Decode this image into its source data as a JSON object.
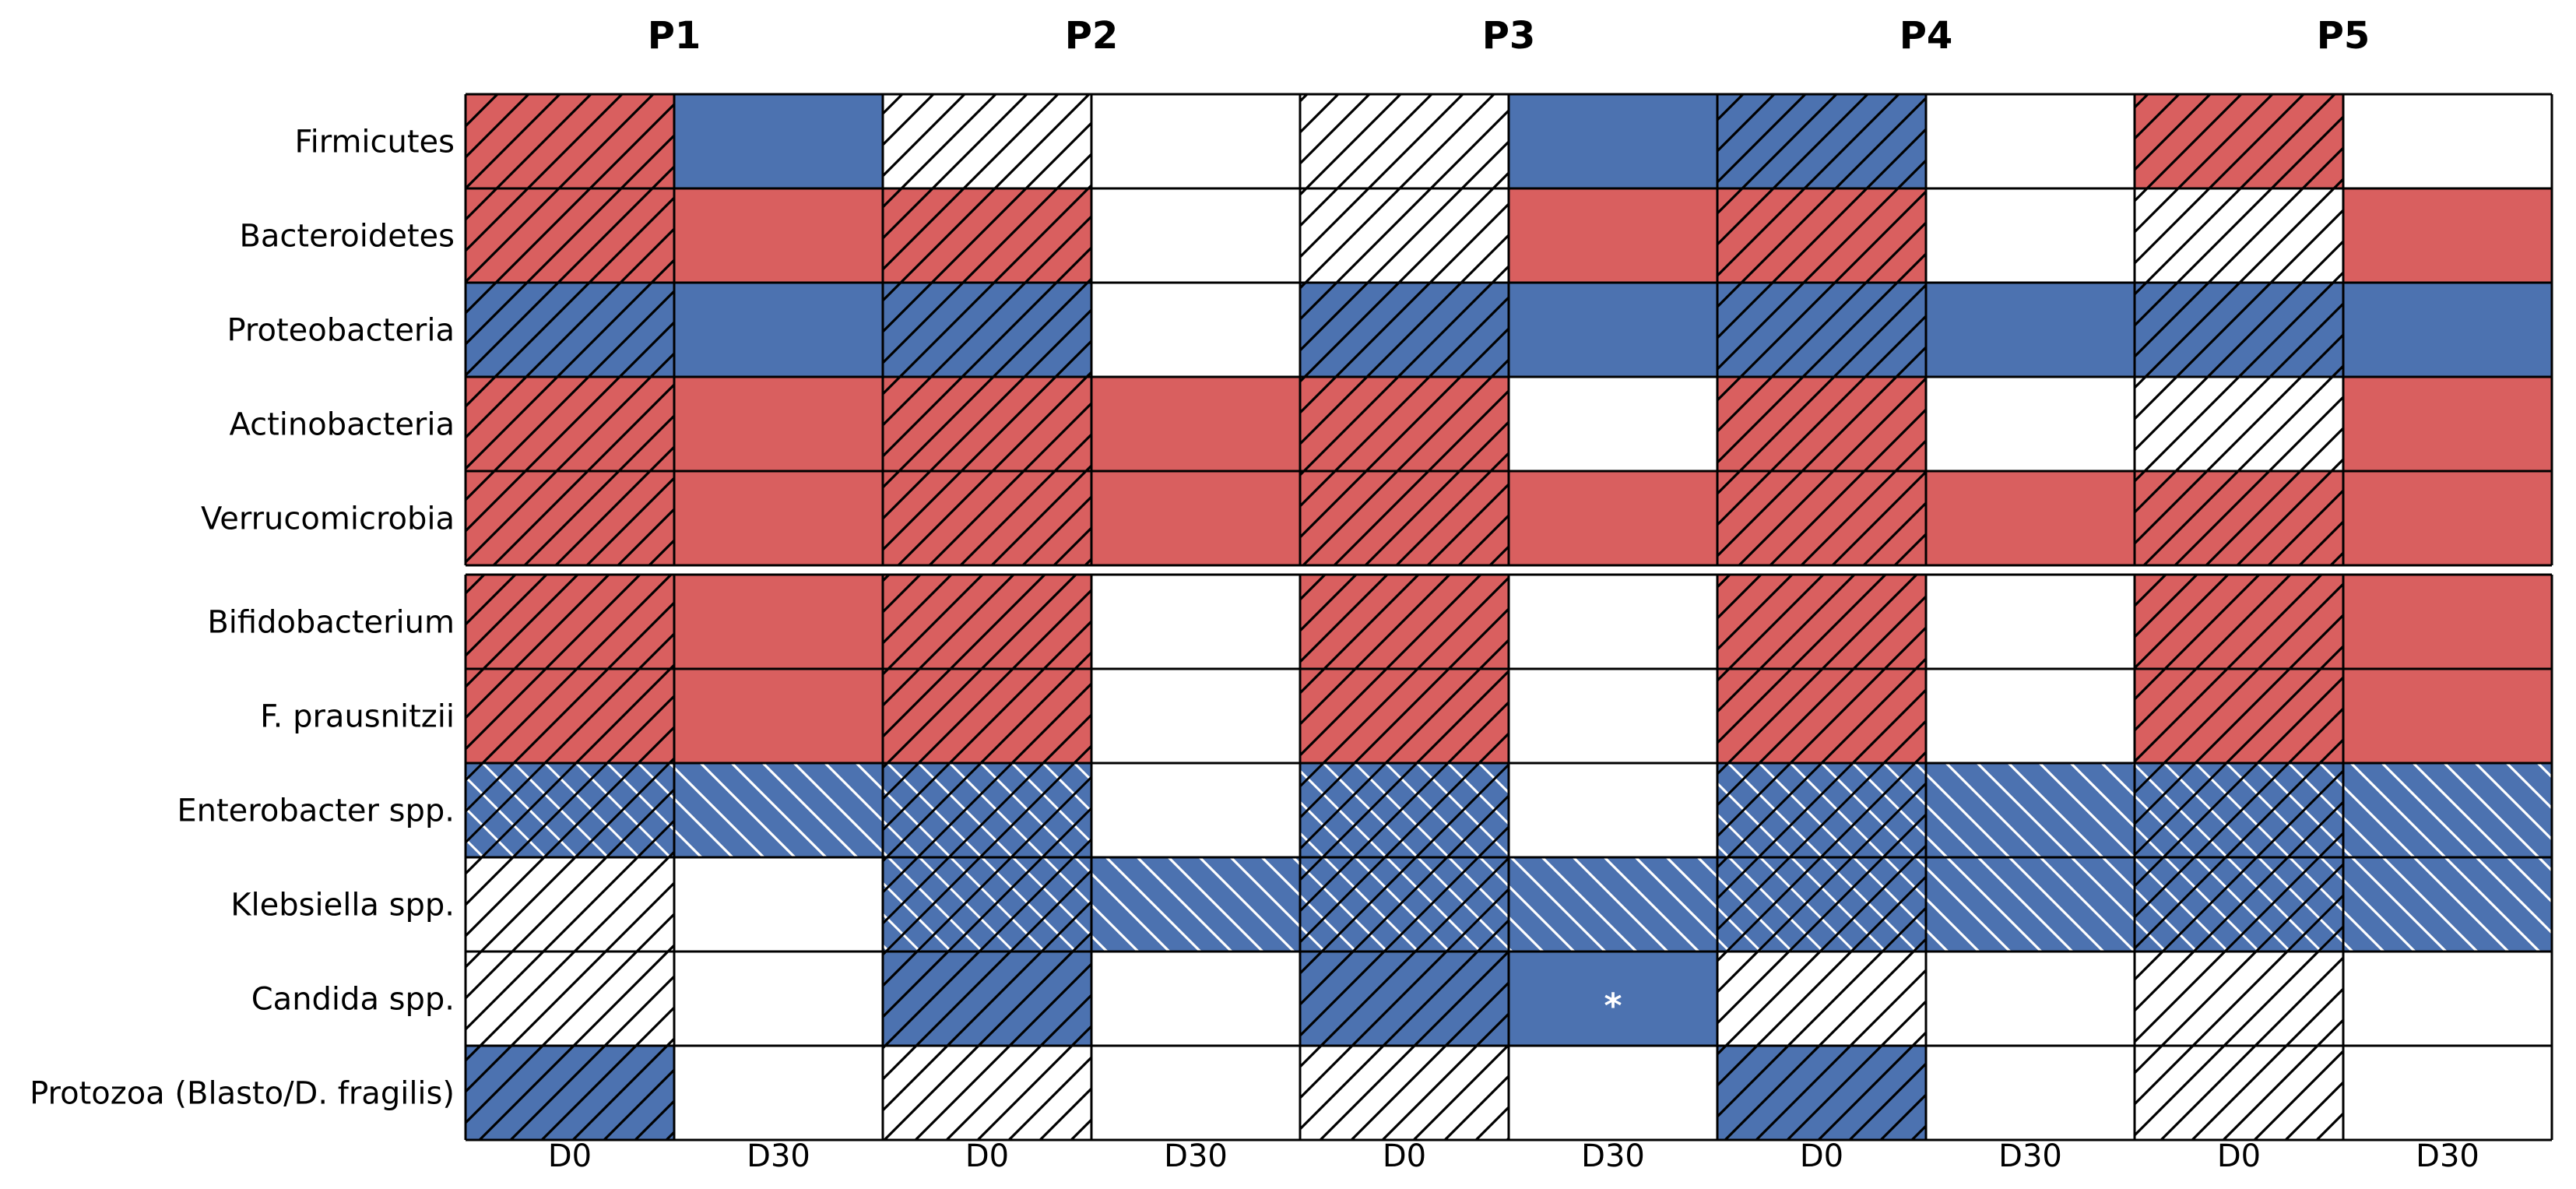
{
  "chart_data": {
    "type": "heatmap",
    "colors": {
      "red": "#d95f5f",
      "blue": "#4c72b0",
      "white": "#ffffff",
      "grid": "#000000"
    },
    "groups": [
      "P1",
      "P2",
      "P3",
      "P4",
      "P5"
    ],
    "timepoints": [
      "D0",
      "D30"
    ],
    "rows": [
      "Firmicutes",
      "Bacteroidetes",
      "Proteobacteria",
      "Actinobacteria",
      "Verrucomicrobia",
      "Bifidobacterium",
      "F. prausnitzii",
      "Enterobacter spp.",
      "Klebsiella spp.",
      "Candida spp.",
      "Protozoa (Blasto/D. fragilis)"
    ],
    "section_break_after_row": 4,
    "cells": [
      [
        [
          "red",
          "fwd"
        ],
        [
          "blue",
          ""
        ],
        [
          "white",
          "fwd"
        ],
        [
          "white",
          ""
        ],
        [
          "white",
          "fwd"
        ],
        [
          "blue",
          ""
        ],
        [
          "blue",
          "fwd"
        ],
        [
          "white",
          ""
        ],
        [
          "red",
          "fwd"
        ],
        [
          "white",
          ""
        ]
      ],
      [
        [
          "red",
          "fwd"
        ],
        [
          "red",
          ""
        ],
        [
          "red",
          "fwd"
        ],
        [
          "white",
          ""
        ],
        [
          "white",
          "fwd"
        ],
        [
          "red",
          ""
        ],
        [
          "red",
          "fwd"
        ],
        [
          "white",
          ""
        ],
        [
          "white",
          "fwd"
        ],
        [
          "red",
          ""
        ]
      ],
      [
        [
          "blue",
          "fwd"
        ],
        [
          "blue",
          ""
        ],
        [
          "blue",
          "fwd"
        ],
        [
          "white",
          ""
        ],
        [
          "blue",
          "fwd"
        ],
        [
          "blue",
          ""
        ],
        [
          "blue",
          "fwd"
        ],
        [
          "blue",
          ""
        ],
        [
          "blue",
          "fwd"
        ],
        [
          "blue",
          ""
        ]
      ],
      [
        [
          "red",
          "fwd"
        ],
        [
          "red",
          ""
        ],
        [
          "red",
          "fwd"
        ],
        [
          "red",
          ""
        ],
        [
          "red",
          "fwd"
        ],
        [
          "white",
          ""
        ],
        [
          "red",
          "fwd"
        ],
        [
          "white",
          ""
        ],
        [
          "white",
          "fwd"
        ],
        [
          "red",
          ""
        ]
      ],
      [
        [
          "red",
          "fwd"
        ],
        [
          "red",
          ""
        ],
        [
          "red",
          "fwd"
        ],
        [
          "red",
          ""
        ],
        [
          "red",
          "fwd"
        ],
        [
          "red",
          ""
        ],
        [
          "red",
          "fwd"
        ],
        [
          "red",
          ""
        ],
        [
          "red",
          "fwd"
        ],
        [
          "red",
          ""
        ]
      ],
      [
        [
          "red",
          "fwd"
        ],
        [
          "red",
          ""
        ],
        [
          "red",
          "fwd"
        ],
        [
          "white",
          ""
        ],
        [
          "red",
          "fwd"
        ],
        [
          "white",
          ""
        ],
        [
          "red",
          "fwd"
        ],
        [
          "white",
          ""
        ],
        [
          "red",
          "fwd"
        ],
        [
          "red",
          ""
        ]
      ],
      [
        [
          "red",
          "fwd"
        ],
        [
          "red",
          ""
        ],
        [
          "red",
          "fwd"
        ],
        [
          "white",
          ""
        ],
        [
          "red",
          "fwd"
        ],
        [
          "white",
          ""
        ],
        [
          "red",
          "fwd"
        ],
        [
          "white",
          ""
        ],
        [
          "red",
          "fwd"
        ],
        [
          "red",
          ""
        ]
      ],
      [
        [
          "blue",
          "cross"
        ],
        [
          "blue",
          "back"
        ],
        [
          "blue",
          "cross"
        ],
        [
          "white",
          ""
        ],
        [
          "blue",
          "cross"
        ],
        [
          "white",
          ""
        ],
        [
          "blue",
          "cross"
        ],
        [
          "blue",
          "back"
        ],
        [
          "blue",
          "cross"
        ],
        [
          "blue",
          "back"
        ]
      ],
      [
        [
          "white",
          "fwd"
        ],
        [
          "white",
          ""
        ],
        [
          "blue",
          "cross"
        ],
        [
          "blue",
          "back"
        ],
        [
          "blue",
          "cross"
        ],
        [
          "blue",
          "back"
        ],
        [
          "blue",
          "cross"
        ],
        [
          "blue",
          "back"
        ],
        [
          "blue",
          "cross"
        ],
        [
          "blue",
          "back"
        ]
      ],
      [
        [
          "white",
          "fwd"
        ],
        [
          "white",
          ""
        ],
        [
          "blue",
          "fwd"
        ],
        [
          "white",
          ""
        ],
        [
          "blue",
          "fwd"
        ],
        [
          "blue",
          ""
        ],
        [
          "white",
          "fwd"
        ],
        [
          "white",
          ""
        ],
        [
          "white",
          "fwd"
        ],
        [
          "white",
          ""
        ]
      ],
      [
        [
          "blue",
          "fwd"
        ],
        [
          "white",
          ""
        ],
        [
          "white",
          "fwd"
        ],
        [
          "white",
          ""
        ],
        [
          "white",
          "fwd"
        ],
        [
          "white",
          ""
        ],
        [
          "blue",
          "fwd"
        ],
        [
          "white",
          ""
        ],
        [
          "white",
          "fwd"
        ],
        [
          "white",
          ""
        ]
      ]
    ],
    "annotations": [
      {
        "row": 9,
        "col": 5,
        "text": "*"
      }
    ]
  }
}
